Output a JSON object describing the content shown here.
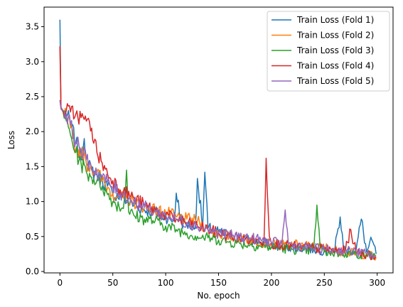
{
  "chart_data": {
    "type": "line",
    "title": "",
    "xlabel": "No. epoch",
    "ylabel": "Loss",
    "xlim": [
      -15,
      315
    ],
    "ylim": [
      -0.02,
      3.78
    ],
    "xticks": [
      0,
      50,
      100,
      150,
      200,
      250,
      300
    ],
    "yticks": [
      0.0,
      0.5,
      1.0,
      1.5,
      2.0,
      2.5,
      3.0,
      3.5
    ],
    "ytick_labels": [
      "0.0",
      "0.5",
      "1.0",
      "1.5",
      "2.0",
      "2.5",
      "3.0",
      "3.5"
    ],
    "grid": false,
    "legend_position": "top-right",
    "series": [
      {
        "name": "Train Loss (Fold 1)",
        "color": "#1f77b4",
        "x": [
          0,
          1,
          3,
          6,
          10,
          15,
          20,
          23,
          26,
          30,
          35,
          40,
          45,
          50,
          60,
          70,
          80,
          90,
          100,
          108,
          110,
          115,
          120,
          128,
          130,
          135,
          137,
          140,
          150,
          160,
          170,
          180,
          190,
          200,
          210,
          220,
          230,
          240,
          250,
          260,
          265,
          268,
          270,
          280,
          285,
          290,
          295,
          299
        ],
        "y": [
          3.6,
          2.35,
          2.28,
          2.25,
          2.12,
          1.85,
          1.6,
          1.9,
          1.52,
          1.45,
          1.38,
          1.3,
          1.22,
          1.1,
          1.05,
          0.95,
          0.88,
          0.85,
          0.78,
          0.72,
          1.12,
          0.7,
          0.68,
          0.62,
          1.33,
          0.65,
          1.42,
          0.62,
          0.56,
          0.52,
          0.48,
          0.44,
          0.42,
          0.38,
          0.36,
          0.35,
          0.33,
          0.32,
          0.3,
          0.32,
          0.78,
          0.35,
          0.3,
          0.3,
          0.75,
          0.28,
          0.45,
          0.25
        ]
      },
      {
        "name": "Train Loss (Fold 2)",
        "color": "#ff7f0e",
        "x": [
          0,
          1,
          3,
          6,
          10,
          15,
          20,
          25,
          30,
          35,
          40,
          45,
          50,
          60,
          70,
          80,
          90,
          100,
          110,
          120,
          130,
          140,
          150,
          160,
          170,
          180,
          190,
          200,
          210,
          220,
          230,
          240,
          250,
          260,
          270,
          280,
          290,
          299
        ],
        "y": [
          3.22,
          2.35,
          2.3,
          2.2,
          2.05,
          1.75,
          1.7,
          1.55,
          1.5,
          1.42,
          1.3,
          1.2,
          1.12,
          1.05,
          1.0,
          0.92,
          0.88,
          0.85,
          0.78,
          0.75,
          0.72,
          0.6,
          0.55,
          0.5,
          0.48,
          0.45,
          0.42,
          0.4,
          0.38,
          0.38,
          0.38,
          0.35,
          0.35,
          0.3,
          0.28,
          0.25,
          0.25,
          0.2
        ]
      },
      {
        "name": "Train Loss (Fold 3)",
        "color": "#2ca02c",
        "x": [
          0,
          1,
          3,
          6,
          10,
          15,
          20,
          25,
          30,
          35,
          40,
          45,
          50,
          60,
          63,
          65,
          70,
          80,
          90,
          100,
          110,
          120,
          130,
          140,
          150,
          160,
          170,
          180,
          190,
          200,
          210,
          220,
          230,
          240,
          243,
          246,
          250,
          260,
          270,
          280,
          290,
          299
        ],
        "y": [
          2.45,
          2.33,
          2.28,
          2.15,
          1.95,
          1.7,
          1.55,
          1.42,
          1.35,
          1.3,
          1.22,
          1.1,
          1.0,
          0.9,
          1.45,
          0.85,
          0.8,
          0.75,
          0.72,
          0.65,
          0.6,
          0.55,
          0.5,
          0.48,
          0.45,
          0.42,
          0.4,
          0.38,
          0.36,
          0.35,
          0.33,
          0.32,
          0.3,
          0.3,
          0.95,
          0.35,
          0.28,
          0.27,
          0.26,
          0.25,
          0.24,
          0.22
        ]
      },
      {
        "name": "Train Loss (Fold 4)",
        "color": "#d62728",
        "x": [
          0,
          1,
          3,
          6,
          10,
          15,
          20,
          25,
          30,
          35,
          40,
          45,
          50,
          60,
          70,
          80,
          90,
          100,
          110,
          120,
          130,
          140,
          150,
          160,
          170,
          180,
          190,
          193,
          195,
          198,
          200,
          210,
          220,
          230,
          240,
          250,
          260,
          270,
          275,
          280,
          290,
          299
        ],
        "y": [
          3.22,
          2.33,
          2.3,
          2.3,
          2.28,
          2.25,
          2.2,
          2.15,
          2.05,
          1.7,
          1.55,
          1.4,
          1.3,
          1.15,
          1.05,
          0.95,
          0.88,
          0.8,
          0.75,
          0.7,
          0.65,
          0.6,
          0.55,
          0.5,
          0.48,
          0.45,
          0.42,
          0.45,
          1.62,
          0.5,
          0.4,
          0.38,
          0.36,
          0.35,
          0.33,
          0.32,
          0.3,
          0.3,
          0.6,
          0.28,
          0.25,
          0.2
        ]
      },
      {
        "name": "Train Loss (Fold 5)",
        "color": "#9467bd",
        "x": [
          0,
          1,
          3,
          6,
          10,
          15,
          20,
          25,
          30,
          35,
          40,
          45,
          50,
          60,
          70,
          80,
          90,
          100,
          110,
          120,
          130,
          140,
          150,
          160,
          170,
          180,
          190,
          200,
          210,
          213,
          216,
          220,
          230,
          240,
          250,
          260,
          270,
          280,
          290,
          299
        ],
        "y": [
          2.45,
          2.32,
          2.3,
          2.25,
          2.1,
          1.85,
          1.75,
          1.6,
          1.5,
          1.42,
          1.35,
          1.28,
          1.2,
          1.1,
          1.0,
          0.92,
          0.85,
          0.8,
          0.75,
          0.7,
          0.65,
          0.6,
          0.55,
          0.52,
          0.5,
          0.48,
          0.45,
          0.42,
          0.4,
          0.88,
          0.4,
          0.38,
          0.35,
          0.33,
          0.32,
          0.3,
          0.3,
          0.28,
          0.25,
          0.22
        ]
      }
    ]
  }
}
